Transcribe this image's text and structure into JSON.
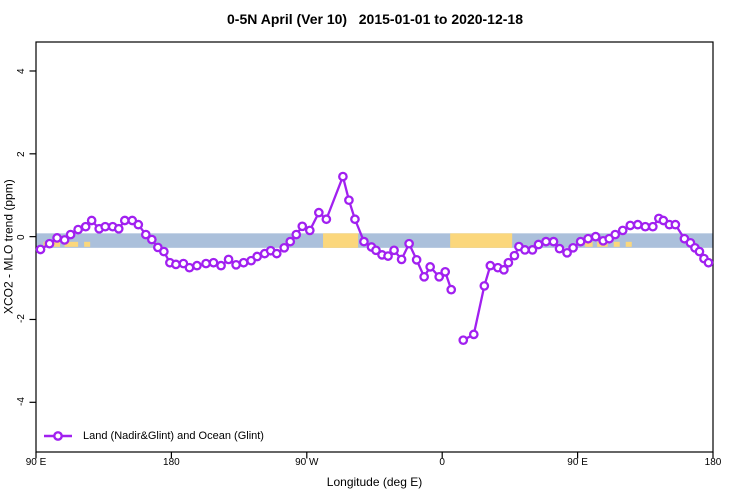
{
  "chart_data": {
    "type": "line",
    "title": "0-5N April (Ver 10)   2015-01-01 to 2020-12-18",
    "xlabel": "Longitude (deg E)",
    "ylabel": "XCO2 - MLO trend (ppm)",
    "xlim": [
      90,
      540
    ],
    "ylim": [
      -5.2,
      4.7
    ],
    "grid": false,
    "x_ticks": [
      {
        "value": 90,
        "label": "90 E"
      },
      {
        "value": 180,
        "label": "180"
      },
      {
        "value": 270,
        "label": "90 W"
      },
      {
        "value": 360,
        "label": "0"
      },
      {
        "value": 450,
        "label": "90 E"
      },
      {
        "value": 540,
        "label": "180"
      }
    ],
    "y_ticks": [
      {
        "value": 4,
        "label": "4"
      },
      {
        "value": 2,
        "label": "2"
      },
      {
        "value": 0,
        "label": "0"
      },
      {
        "value": -2,
        "label": "-2"
      },
      {
        "value": -4,
        "label": "-4"
      }
    ],
    "zero_band": {
      "blue_color": "#ABC0DB",
      "orange_color": "#FBD77C",
      "v_top": 0.08,
      "v_bottom": -0.27,
      "blue_range_deg": [
        90,
        540
      ],
      "orange_segments_deg": [
        [
          280.8,
          304.1
        ],
        [
          365.3,
          406.5
        ]
      ],
      "orange_speckles_deg": [
        [
          95,
          99
        ],
        [
          102,
          106
        ],
        [
          109,
          118
        ],
        [
          122,
          126
        ],
        [
          455,
          460
        ],
        [
          463,
          470
        ],
        [
          474,
          478
        ],
        [
          482,
          486
        ]
      ]
    },
    "legend": {
      "position": "bottom-left",
      "entries": [
        {
          "label": "Land (Nadir&Glint) and Ocean (Glint)",
          "color": "#A120F0",
          "marker": "open-circle"
        }
      ]
    },
    "series": [
      {
        "name": "Land (Nadir&Glint) and Ocean (Glint)",
        "color": "#A120F0",
        "marker": "open-circle",
        "points": [
          [
            93,
            -0.31
          ],
          [
            99,
            -0.17
          ],
          [
            104,
            -0.03
          ],
          [
            109,
            -0.08
          ],
          [
            113,
            0.05
          ],
          [
            118,
            0.17
          ],
          [
            123,
            0.24
          ],
          [
            127,
            0.39
          ],
          [
            132,
            0.19
          ],
          [
            136,
            0.24
          ],
          [
            141,
            0.24
          ],
          [
            145,
            0.19
          ],
          [
            149,
            0.39
          ],
          [
            154,
            0.39
          ],
          [
            158,
            0.29
          ],
          [
            163,
            0.05
          ],
          [
            167,
            -0.07
          ],
          [
            171,
            -0.26
          ],
          [
            175,
            -0.36
          ],
          [
            179,
            -0.63
          ],
          [
            183,
            -0.67
          ],
          [
            188,
            -0.65
          ],
          [
            192,
            -0.75
          ],
          [
            197,
            -0.7
          ],
          [
            203,
            -0.65
          ],
          [
            208,
            -0.63
          ],
          [
            213,
            -0.7
          ],
          [
            218,
            -0.55
          ],
          [
            223,
            -0.68
          ],
          [
            228,
            -0.63
          ],
          [
            233,
            -0.58
          ],
          [
            237,
            -0.48
          ],
          [
            242,
            -0.41
          ],
          [
            246,
            -0.34
          ],
          [
            250,
            -0.41
          ],
          [
            255,
            -0.27
          ],
          [
            259,
            -0.12
          ],
          [
            263,
            0.05
          ],
          [
            267,
            0.25
          ],
          [
            272,
            0.15
          ],
          [
            278,
            0.58
          ],
          [
            283,
            0.42
          ],
          [
            294,
            1.45
          ],
          [
            298,
            0.88
          ],
          [
            302,
            0.42
          ],
          [
            308,
            -0.12
          ],
          [
            313,
            -0.25
          ],
          [
            316,
            -0.33
          ],
          [
            320,
            -0.44
          ],
          [
            324,
            -0.47
          ],
          [
            328,
            -0.33
          ],
          [
            333,
            -0.55
          ],
          [
            338,
            -0.17
          ],
          [
            343,
            -0.56
          ],
          [
            348,
            -0.97
          ],
          [
            352,
            -0.73
          ],
          [
            358,
            -0.97
          ],
          [
            362,
            -0.85
          ],
          [
            366,
            -1.28
          ],
          null,
          [
            374,
            -2.5
          ],
          [
            381,
            -2.36
          ],
          [
            388,
            -1.19
          ],
          [
            392,
            -0.7
          ],
          [
            397,
            -0.75
          ],
          [
            401,
            -0.8
          ],
          [
            404,
            -0.63
          ],
          [
            408,
            -0.46
          ],
          [
            411,
            -0.24
          ],
          [
            415,
            -0.32
          ],
          [
            420,
            -0.32
          ],
          [
            424,
            -0.19
          ],
          [
            429,
            -0.12
          ],
          [
            434,
            -0.12
          ],
          [
            438,
            -0.29
          ],
          [
            443,
            -0.39
          ],
          [
            447,
            -0.27
          ],
          [
            452,
            -0.12
          ],
          [
            457,
            -0.05
          ],
          [
            462,
            0.0
          ],
          [
            467,
            -0.1
          ],
          [
            471,
            -0.05
          ],
          [
            475,
            0.05
          ],
          [
            480,
            0.15
          ],
          [
            485,
            0.27
          ],
          [
            490,
            0.29
          ],
          [
            495,
            0.24
          ],
          [
            500,
            0.24
          ],
          [
            504,
            0.44
          ],
          [
            507,
            0.39
          ],
          [
            511,
            0.29
          ],
          [
            515,
            0.29
          ],
          [
            521,
            -0.05
          ],
          [
            525,
            -0.15
          ],
          [
            528,
            -0.27
          ],
          [
            531,
            -0.36
          ],
          [
            534,
            -0.53
          ],
          [
            537,
            -0.63
          ]
        ]
      }
    ]
  }
}
